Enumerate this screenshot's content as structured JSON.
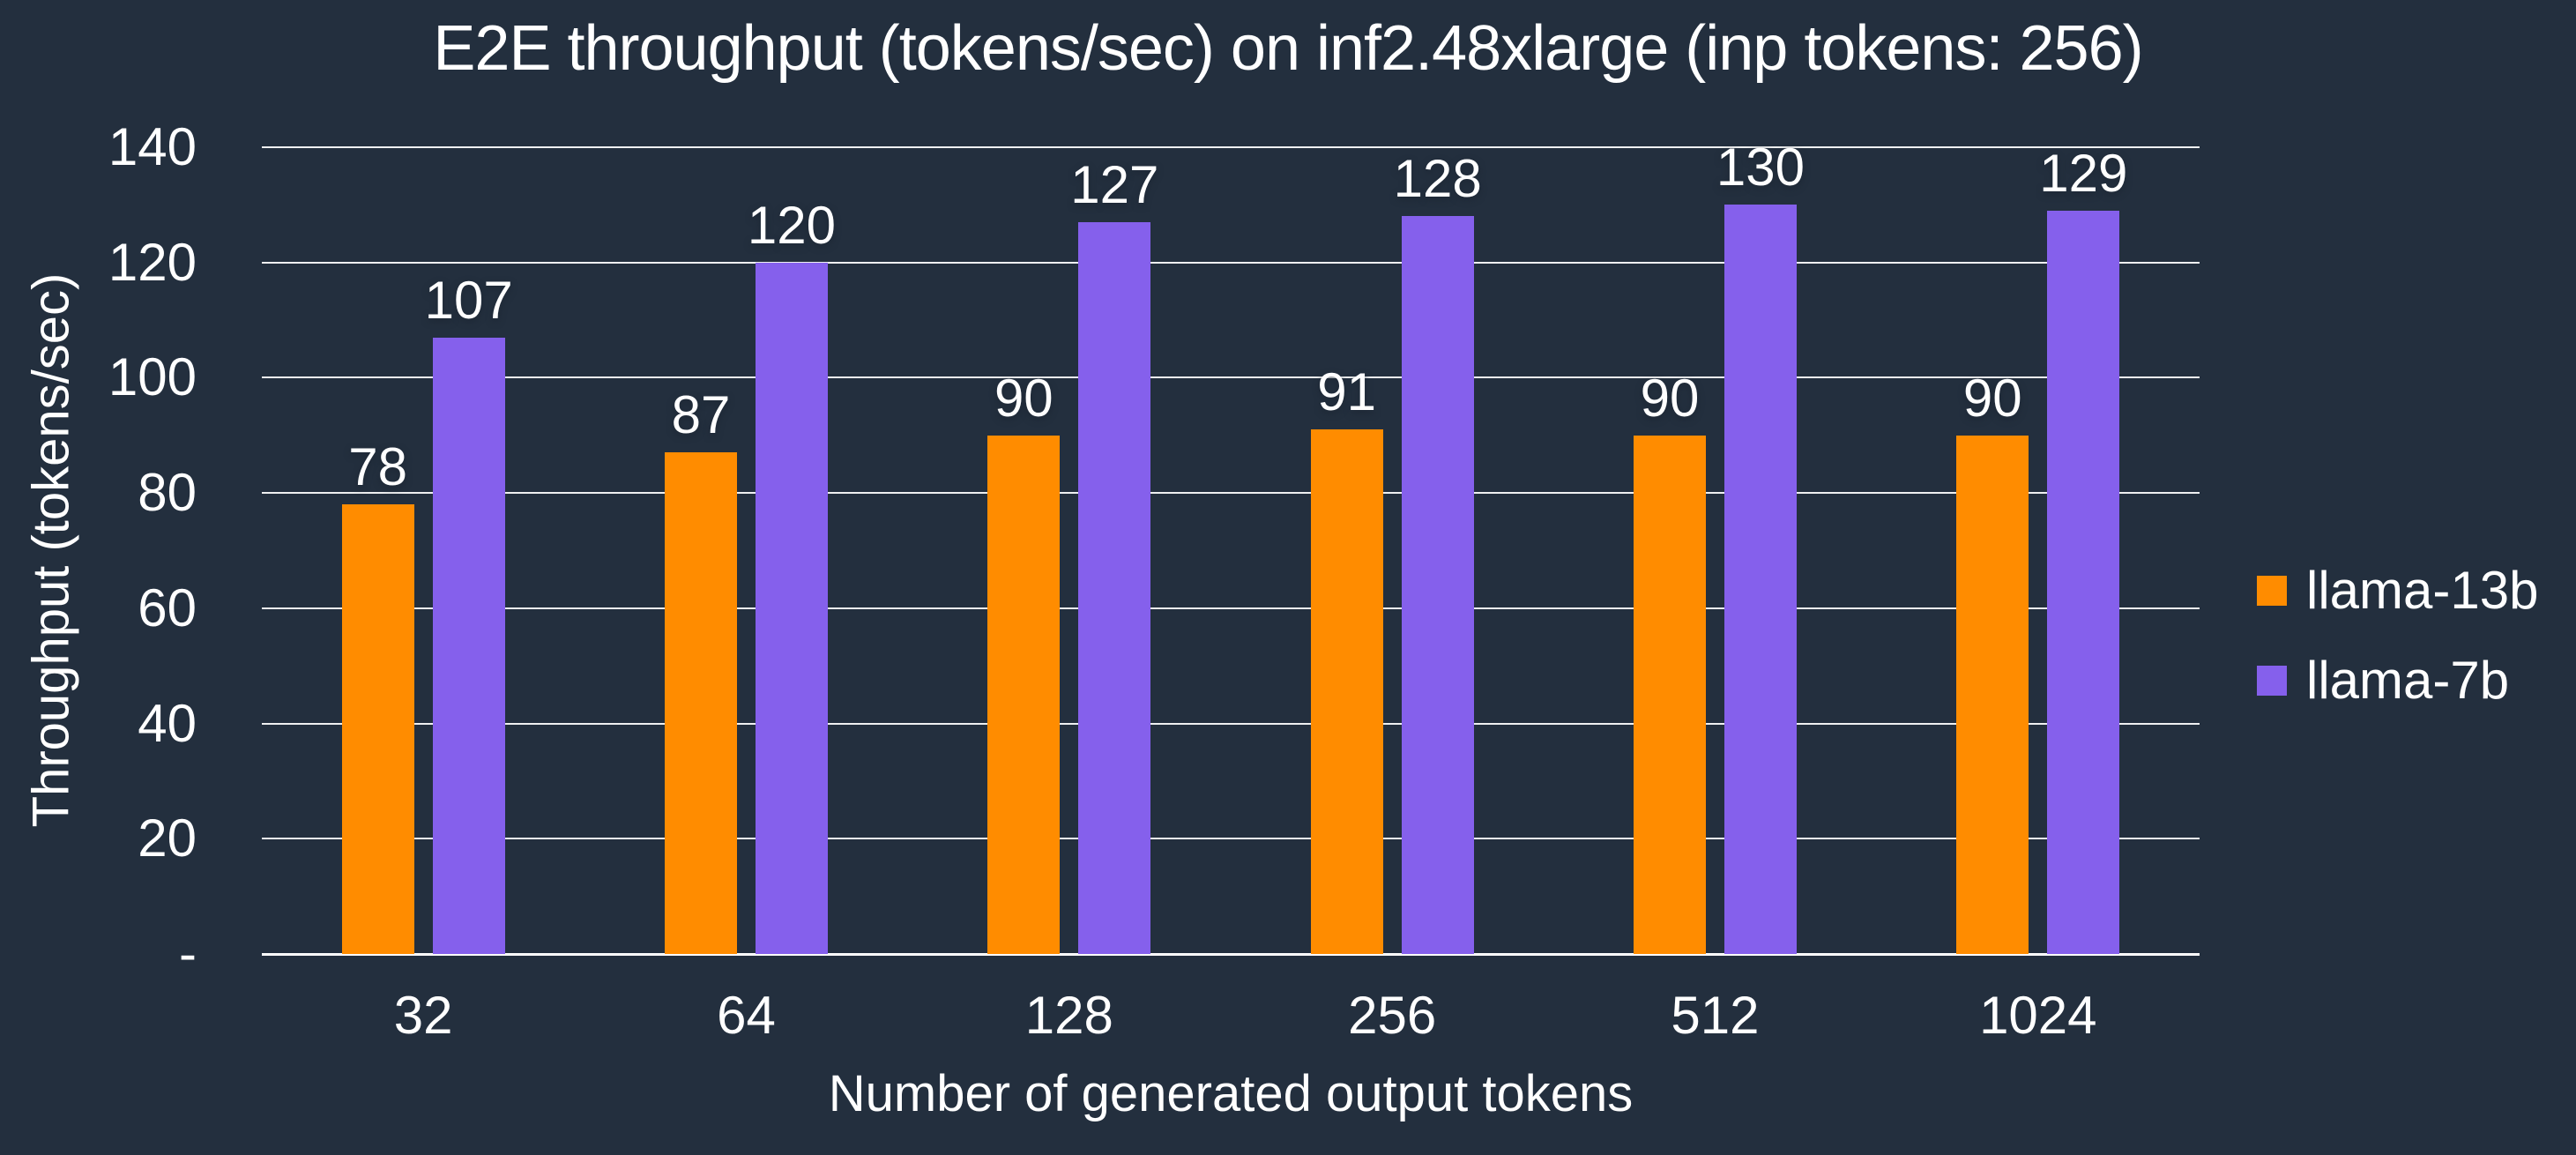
{
  "chart_data": {
    "type": "bar",
    "title": "E2E throughput (tokens/sec) on inf2.48xlarge (inp tokens: 256)",
    "xlabel": "Number of generated output tokens",
    "ylabel": "Throughput (tokens/sec)",
    "categories": [
      "32",
      "64",
      "128",
      "256",
      "512",
      "1024"
    ],
    "series": [
      {
        "name": "llama-13b",
        "color": "#FF8C00",
        "values": [
          78,
          87,
          90,
          91,
          90,
          90
        ]
      },
      {
        "name": "llama-7b",
        "color": "#8560EC",
        "values": [
          107,
          120,
          127,
          128,
          130,
          129
        ]
      }
    ],
    "ylim": [
      0,
      140
    ],
    "y_ticks": [
      {
        "value": 140,
        "label": "140"
      },
      {
        "value": 120,
        "label": "120"
      },
      {
        "value": 100,
        "label": "100"
      },
      {
        "value": 80,
        "label": "80"
      },
      {
        "value": 60,
        "label": "60"
      },
      {
        "value": 40,
        "label": "40"
      },
      {
        "value": 20,
        "label": "20"
      },
      {
        "value": 0,
        "label": "-"
      }
    ],
    "grid": "horizontal",
    "legend_position": "right"
  },
  "colors": {
    "background": "#232F3E",
    "text": "#FFFFFF",
    "gridline": "#FFFFFF",
    "llama_13b": "#FF8C00",
    "llama_7b": "#8560EC"
  }
}
